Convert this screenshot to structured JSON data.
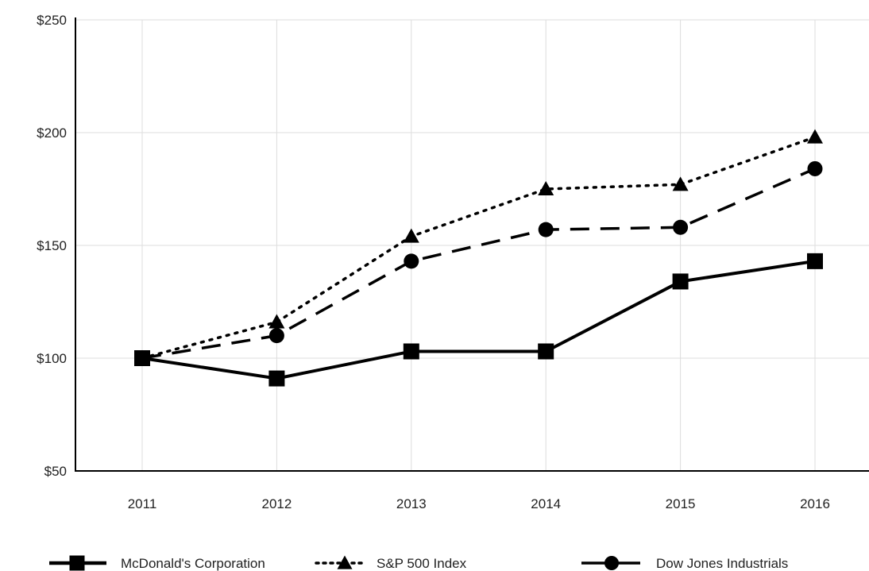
{
  "chart_data": {
    "type": "line",
    "title": "",
    "xlabel": "",
    "ylabel": "",
    "categories": [
      "2011",
      "2012",
      "2013",
      "2014",
      "2015",
      "2016"
    ],
    "y_ticks": [
      "$50",
      "$100",
      "$150",
      "$200",
      "$250"
    ],
    "y_tick_values": [
      50,
      100,
      150,
      200,
      250
    ],
    "ylim": [
      50,
      250
    ],
    "grid": true,
    "legend_position": "bottom",
    "series": [
      {
        "name": "McDonald's Corporation",
        "values": [
          100,
          91,
          103,
          103,
          134,
          143
        ],
        "line_style": "solid",
        "marker": "square-icon",
        "color": "#000000"
      },
      {
        "name": "S&P 500 Index",
        "values": [
          100,
          116,
          154,
          175,
          177,
          198
        ],
        "line_style": "dotted",
        "marker": "triangle-icon",
        "color": "#000000"
      },
      {
        "name": "Dow Jones Industrials",
        "values": [
          100,
          110,
          143,
          157,
          158,
          184
        ],
        "line_style": "dashed",
        "marker": "circle-icon",
        "color": "#000000"
      }
    ]
  }
}
